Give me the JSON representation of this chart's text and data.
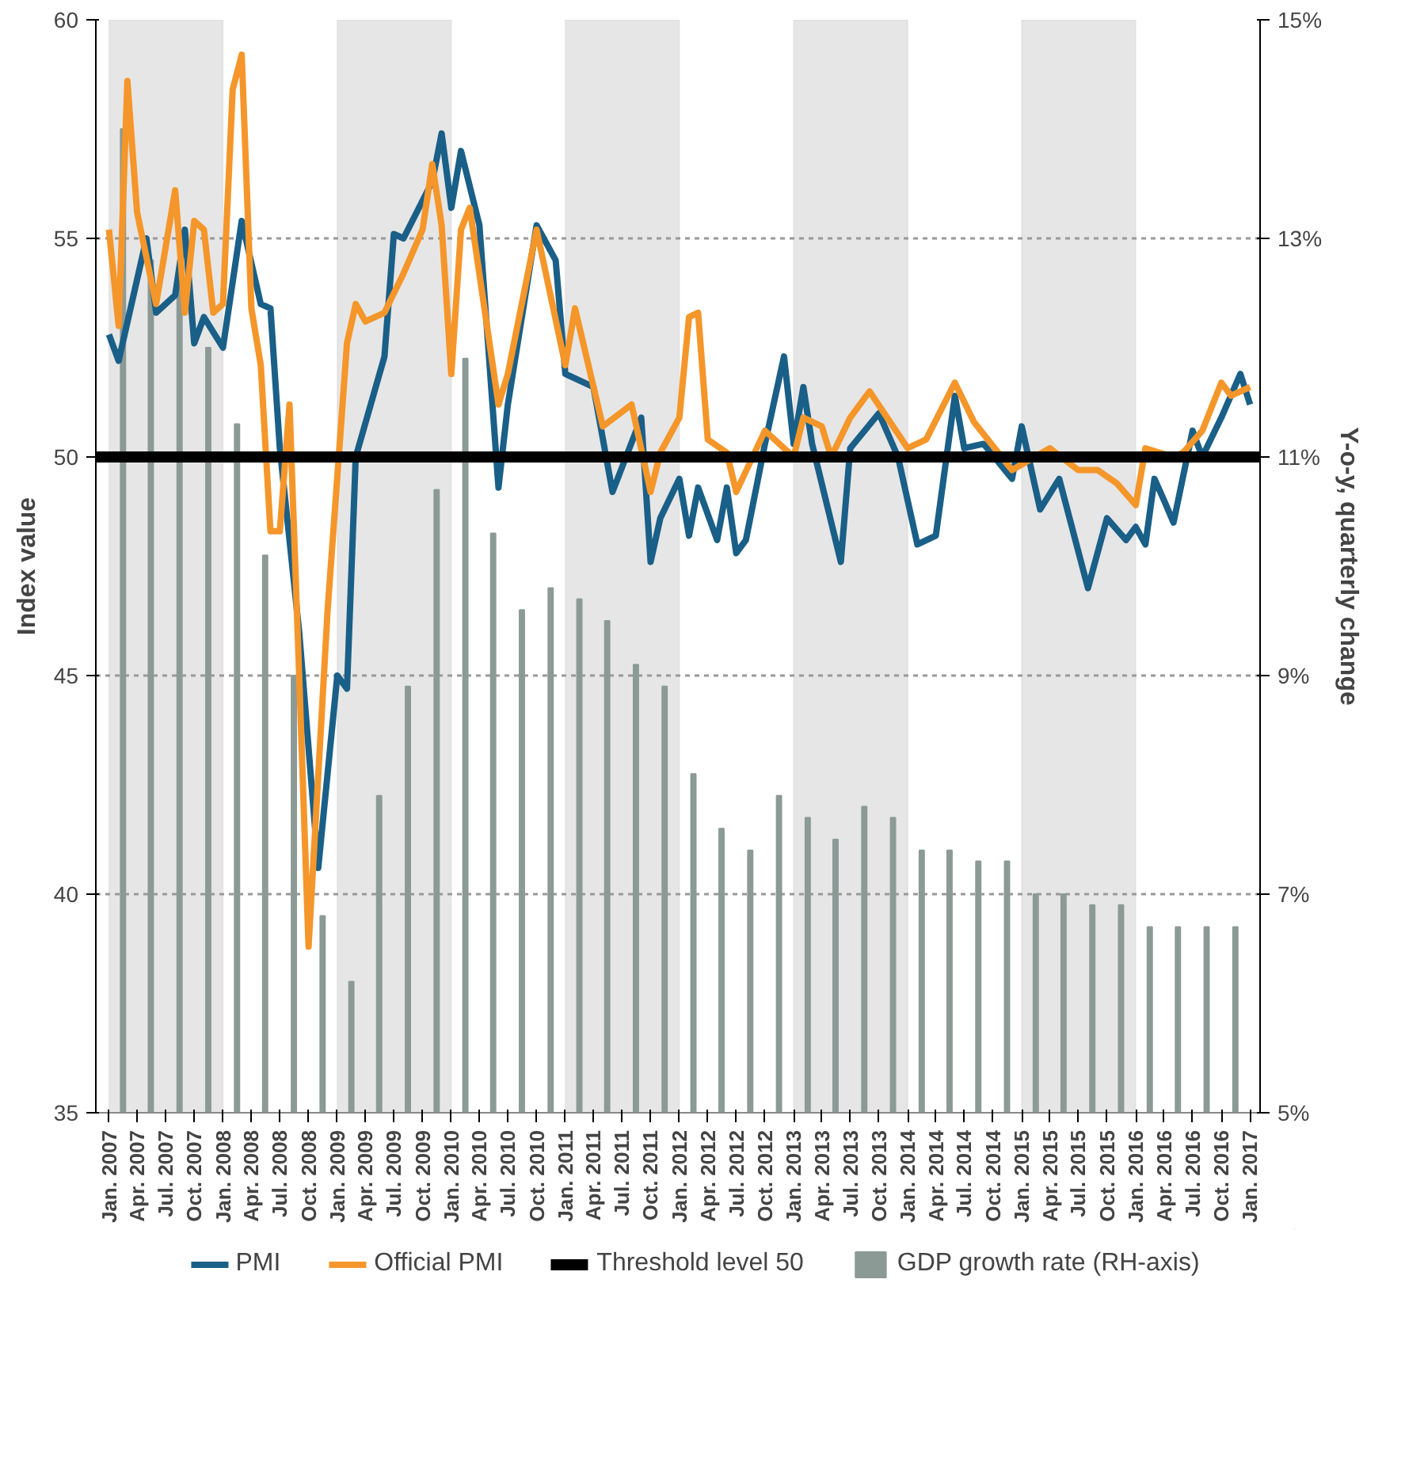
{
  "chart_data": {
    "type": "line",
    "ylabel": "Index value",
    "y2label": "Y-o-y, quarterly change",
    "xlim": [
      "2006-11-20",
      "2017-02-02"
    ],
    "ylim": [
      35,
      60
    ],
    "yticks": [
      35,
      40,
      45,
      50,
      55,
      60
    ],
    "y2lim": [
      5,
      15
    ],
    "y2ticks": [
      {
        "value": 5,
        "label": "5%"
      },
      {
        "value": 7,
        "label": "7%"
      },
      {
        "value": 9,
        "label": "9%"
      },
      {
        "value": 11,
        "label": "11%"
      },
      {
        "value": 13,
        "label": "13%"
      },
      {
        "value": 15,
        "label": "15%"
      }
    ],
    "xticks": [
      {
        "value": "2007-01",
        "label": "Jan. 2007"
      },
      {
        "value": "2007-04",
        "label": "Apr. 2007"
      },
      {
        "value": "2007-07",
        "label": "Jul. 2007"
      },
      {
        "value": "2007-10",
        "label": "Oct. 2007"
      },
      {
        "value": "2008-01",
        "label": "Jan. 2008"
      },
      {
        "value": "2008-04",
        "label": "Apr. 2008"
      },
      {
        "value": "2008-07",
        "label": "Jul. 2008"
      },
      {
        "value": "2008-10",
        "label": "Oct. 2008"
      },
      {
        "value": "2009-01",
        "label": "Jan. 2009"
      },
      {
        "value": "2009-04",
        "label": "Apr. 2009"
      },
      {
        "value": "2009-07",
        "label": "Jul. 2009"
      },
      {
        "value": "2009-10",
        "label": "Oct. 2009"
      },
      {
        "value": "2010-01",
        "label": "Jan. 2010"
      },
      {
        "value": "2010-04",
        "label": "Apr. 2010"
      },
      {
        "value": "2010-07",
        "label": "Jul. 2010"
      },
      {
        "value": "2010-10",
        "label": "Oct. 2010"
      },
      {
        "value": "2011-01",
        "label": "Jan. 2011"
      },
      {
        "value": "2011-04",
        "label": "Apr. 2011"
      },
      {
        "value": "2011-07",
        "label": "Jul. 2011"
      },
      {
        "value": "2011-10",
        "label": "Oct. 2011"
      },
      {
        "value": "2012-01",
        "label": "Jan. 2012"
      },
      {
        "value": "2012-04",
        "label": "Apr. 2012"
      },
      {
        "value": "2012-07",
        "label": "Jul. 2012"
      },
      {
        "value": "2012-10",
        "label": "Oct. 2012"
      },
      {
        "value": "2013-01",
        "label": "Jan. 2013"
      },
      {
        "value": "2013-04",
        "label": "Apr. 2013"
      },
      {
        "value": "2013-07",
        "label": "Jul. 2013"
      },
      {
        "value": "2013-10",
        "label": "Oct. 2013"
      },
      {
        "value": "2014-01",
        "label": "Jan. 2014"
      },
      {
        "value": "2014-04",
        "label": "Apr. 2014"
      },
      {
        "value": "2014-07",
        "label": "Jul. 2014"
      },
      {
        "value": "2014-10",
        "label": "Oct. 2014"
      },
      {
        "value": "2015-01",
        "label": "Jan. 2015"
      },
      {
        "value": "2015-04",
        "label": "Apr. 2015"
      },
      {
        "value": "2015-07",
        "label": "Jul. 2015"
      },
      {
        "value": "2015-10",
        "label": "Oct. 2015"
      },
      {
        "value": "2016-01",
        "label": "Jan. 2016"
      },
      {
        "value": "2016-04",
        "label": "Apr. 2016"
      },
      {
        "value": "2016-07",
        "label": "Jul. 2016"
      },
      {
        "value": "2016-10",
        "label": "Oct. 2016"
      },
      {
        "value": "2017-01",
        "label": "Jan. 2017"
      }
    ],
    "grid": "y",
    "legend": "bottom",
    "bands": [
      {
        "axis": "x",
        "from": "2007-01",
        "to": "2008-01",
        "color": "#e6e6e6"
      },
      {
        "axis": "x",
        "from": "2009-01",
        "to": "2010-01",
        "color": "#e6e6e6"
      },
      {
        "axis": "x",
        "from": "2011-01",
        "to": "2012-01",
        "color": "#e6e6e6"
      },
      {
        "axis": "x",
        "from": "2013-01",
        "to": "2014-01",
        "color": "#e6e6e6"
      },
      {
        "axis": "x",
        "from": "2015-01",
        "to": "2016-01",
        "color": "#e6e6e6"
      }
    ],
    "ref_lines": [
      {
        "axis": "y",
        "value": 50,
        "label": "Threshold level 50",
        "color": "#000000"
      }
    ],
    "series": [
      {
        "name": "GDP growth rate (RH-axis)",
        "type": "bar",
        "axis": "y2",
        "color": "#8c9a96",
        "x": [
          "2007-02-15",
          "2007-05-15",
          "2007-08-15",
          "2007-11-15",
          "2008-02-15",
          "2008-05-15",
          "2008-08-15",
          "2008-11-15",
          "2009-02-15",
          "2009-05-15",
          "2009-08-15",
          "2009-11-15",
          "2010-02-15",
          "2010-05-15",
          "2010-08-15",
          "2010-11-15",
          "2011-02-15",
          "2011-05-15",
          "2011-08-15",
          "2011-11-15",
          "2012-02-15",
          "2012-05-15",
          "2012-08-15",
          "2012-11-15",
          "2013-02-15",
          "2013-05-15",
          "2013-08-15",
          "2013-11-15",
          "2014-02-15",
          "2014-05-15",
          "2014-08-15",
          "2014-11-15",
          "2015-02-15",
          "2015-05-15",
          "2015-08-15",
          "2015-11-15",
          "2016-02-15",
          "2016-05-15",
          "2016-08-15",
          "2016-11-15"
        ],
        "values": [
          14.0,
          12.8,
          12.6,
          12.0,
          11.3,
          10.1,
          9.0,
          6.8,
          6.2,
          7.9,
          8.9,
          10.7,
          11.9,
          10.3,
          9.6,
          9.8,
          9.7,
          9.5,
          9.1,
          8.9,
          8.1,
          7.6,
          7.4,
          7.9,
          7.7,
          7.5,
          7.8,
          7.7,
          7.4,
          7.4,
          7.3,
          7.3,
          7.0,
          7.0,
          6.9,
          6.9,
          6.7,
          6.7,
          6.7,
          6.7
        ]
      },
      {
        "name": "PMI",
        "color": "#1a5f87",
        "x": [
          "2007-01",
          "2007-02",
          "2007-05",
          "2007-06",
          "2007-08",
          "2007-09",
          "2007-10",
          "2007-11",
          "2008-01",
          "2008-03",
          "2008-05",
          "2008-06",
          "2008-07",
          "2008-09",
          "2008-11",
          "2009-01",
          "2009-02",
          "2009-03",
          "2009-06",
          "2009-07",
          "2009-08",
          "2009-11",
          "2009-12",
          "2010-01",
          "2010-02",
          "2010-04",
          "2010-06",
          "2010-07",
          "2010-10",
          "2010-12",
          "2011-01",
          "2011-04",
          "2011-06",
          "2011-09",
          "2011-10",
          "2011-11",
          "2012-01",
          "2012-02",
          "2012-03",
          "2012-05",
          "2012-06",
          "2012-07",
          "2012-08",
          "2012-10",
          "2012-12",
          "2013-01",
          "2013-02",
          "2013-03",
          "2013-06",
          "2013-07",
          "2013-10",
          "2013-12",
          "2014-02",
          "2014-04",
          "2014-06",
          "2014-07",
          "2014-09",
          "2014-12",
          "2015-01",
          "2015-03",
          "2015-05",
          "2015-08",
          "2015-10",
          "2015-12",
          "2016-01",
          "2016-02",
          "2016-03",
          "2016-04",
          "2016-05",
          "2016-07",
          "2016-08",
          "2016-10",
          "2016-12",
          "2017-01"
        ],
        "values": [
          52.8,
          52.2,
          55.0,
          53.3,
          53.7,
          55.2,
          52.6,
          53.2,
          52.5,
          55.4,
          53.5,
          53.4,
          50.2,
          46.0,
          40.6,
          45.0,
          44.7,
          50.0,
          52.3,
          55.1,
          55.0,
          56.3,
          57.4,
          55.7,
          57.0,
          55.3,
          49.3,
          51.2,
          55.3,
          54.5,
          51.9,
          51.6,
          49.2,
          50.9,
          47.6,
          48.6,
          49.5,
          48.2,
          49.3,
          48.1,
          49.3,
          47.8,
          48.1,
          50.3,
          52.3,
          50.3,
          51.6,
          50.3,
          47.6,
          50.2,
          51.0,
          50.0,
          48.0,
          48.2,
          51.4,
          50.2,
          50.3,
          49.5,
          50.7,
          48.8,
          49.5,
          47.0,
          48.6,
          48.1,
          48.4,
          48.0,
          49.5,
          49.0,
          48.5,
          50.6,
          50.0,
          50.9,
          51.9,
          51.2
        ]
      },
      {
        "name": "Official PMI",
        "color": "#f5962a",
        "x": [
          "2007-01",
          "2007-02",
          "2007-03",
          "2007-04",
          "2007-06",
          "2007-08",
          "2007-09",
          "2007-10",
          "2007-11",
          "2007-12",
          "2008-01",
          "2008-02",
          "2008-03",
          "2008-04",
          "2008-05",
          "2008-06",
          "2008-07",
          "2008-08",
          "2008-09",
          "2008-10",
          "2008-12",
          "2009-02",
          "2009-03",
          "2009-04",
          "2009-06",
          "2009-08",
          "2009-10",
          "2009-11",
          "2009-12",
          "2010-01",
          "2010-02",
          "2010-03",
          "2010-06",
          "2010-07",
          "2010-10",
          "2011-01",
          "2011-02",
          "2011-05",
          "2011-08",
          "2011-10",
          "2011-11",
          "2012-01",
          "2012-02",
          "2012-03",
          "2012-04",
          "2012-06",
          "2012-07",
          "2012-10",
          "2013-01",
          "2013-02",
          "2013-04",
          "2013-05",
          "2013-07",
          "2013-09",
          "2014-01",
          "2014-03",
          "2014-06",
          "2014-08",
          "2014-12",
          "2015-04",
          "2015-07",
          "2015-09",
          "2015-11",
          "2016-01",
          "2016-02",
          "2016-05",
          "2016-06",
          "2016-08",
          "2016-10",
          "2016-11",
          "2017-01"
        ],
        "values": [
          55.2,
          53.0,
          58.6,
          55.6,
          53.5,
          56.1,
          53.3,
          55.4,
          55.2,
          53.3,
          53.5,
          58.4,
          59.2,
          53.4,
          52.1,
          48.3,
          48.3,
          51.2,
          45.0,
          38.8,
          46.5,
          52.6,
          53.5,
          53.1,
          53.3,
          54.2,
          55.2,
          56.7,
          55.3,
          51.9,
          55.2,
          55.7,
          51.2,
          51.9,
          55.2,
          52.1,
          53.4,
          50.7,
          51.2,
          49.2,
          50.1,
          50.9,
          53.2,
          53.3,
          50.4,
          50.1,
          49.2,
          50.6,
          50.0,
          50.9,
          50.7,
          50.0,
          50.9,
          51.5,
          50.2,
          50.4,
          51.7,
          50.8,
          49.7,
          50.2,
          49.7,
          49.7,
          49.4,
          48.9,
          50.2,
          50.0,
          50.1,
          50.6,
          51.7,
          51.4,
          51.6
        ]
      }
    ]
  }
}
